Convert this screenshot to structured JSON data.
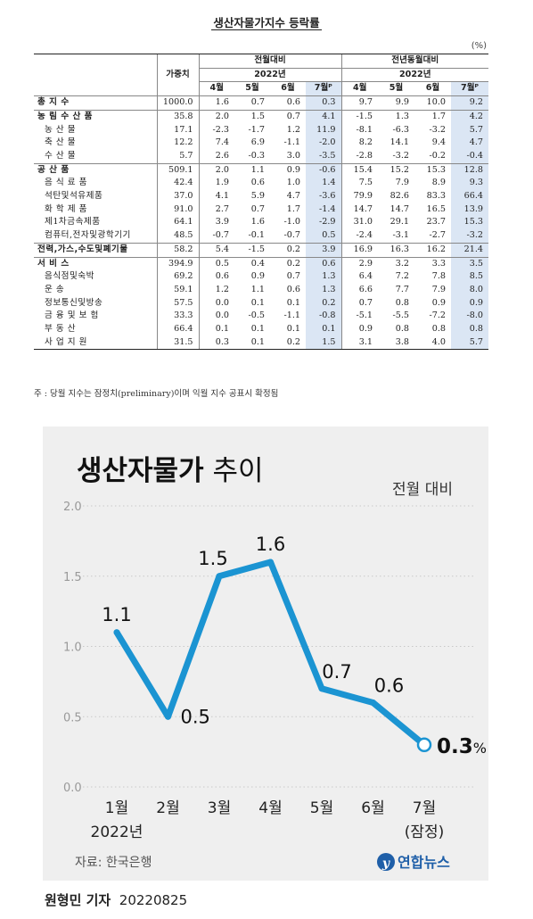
{
  "table": {
    "title": "생산자물가지수 등락률",
    "unit": "(%)",
    "headers": {
      "weight": "가중치",
      "mom": "전월대비",
      "yoy": "전년동월대비",
      "year": "2022년",
      "months": [
        "4월",
        "5월",
        "6월",
        "7월ᴾ"
      ]
    },
    "rows": [
      {
        "label": "총 지 수",
        "style": "bold",
        "w": "1000.0",
        "v": [
          "1.6",
          "0.7",
          "0.6",
          "0.3",
          "9.7",
          "9.9",
          "10.0",
          "9.2"
        ]
      },
      {
        "label": "농 림 수 산 품",
        "style": "bold",
        "w": "35.8",
        "v": [
          "2.0",
          "1.5",
          "0.7",
          "4.1",
          "-1.5",
          "1.3",
          "1.7",
          "4.2"
        ]
      },
      {
        "label": "농 산 물",
        "style": "sub",
        "w": "17.1",
        "v": [
          "-2.3",
          "-1.7",
          "1.2",
          "11.9",
          "-8.1",
          "-6.3",
          "-3.2",
          "5.7"
        ]
      },
      {
        "label": "축 산 물",
        "style": "sub",
        "w": "12.2",
        "v": [
          "7.4",
          "6.9",
          "-1.1",
          "-2.0",
          "8.2",
          "14.1",
          "9.4",
          "4.7"
        ]
      },
      {
        "label": "수 산 물",
        "style": "sub",
        "w": "5.7",
        "v": [
          "2.6",
          "-0.3",
          "3.0",
          "-3.5",
          "-2.8",
          "-3.2",
          "-0.2",
          "-0.4"
        ]
      },
      {
        "label": "공 산 품",
        "style": "bold",
        "w": "509.1",
        "v": [
          "2.0",
          "1.1",
          "0.9",
          "-0.6",
          "15.4",
          "15.2",
          "15.3",
          "12.8"
        ]
      },
      {
        "label": "음 식 료 품",
        "style": "sub",
        "w": "42.4",
        "v": [
          "1.9",
          "0.6",
          "1.0",
          "1.4",
          "7.5",
          "7.9",
          "8.9",
          "9.3"
        ]
      },
      {
        "label": "석탄및석유제품",
        "style": "sub",
        "w": "37.0",
        "v": [
          "4.1",
          "5.9",
          "4.7",
          "-3.6",
          "79.9",
          "82.6",
          "83.3",
          "66.4"
        ]
      },
      {
        "label": "화 학 제 품",
        "style": "sub",
        "w": "91.0",
        "v": [
          "2.7",
          "0.7",
          "1.7",
          "-1.4",
          "14.7",
          "14.7",
          "16.5",
          "13.9"
        ]
      },
      {
        "label": "제1차금속제품",
        "style": "sub",
        "w": "64.1",
        "v": [
          "3.9",
          "1.6",
          "-1.0",
          "-2.9",
          "31.0",
          "29.1",
          "23.7",
          "15.3"
        ]
      },
      {
        "label": "컴퓨터,전자및광학기기",
        "style": "sub",
        "w": "48.5",
        "v": [
          "-0.7",
          "-0.1",
          "-0.7",
          "0.5",
          "-2.4",
          "-3.1",
          "-2.7",
          "-3.2"
        ]
      },
      {
        "label": "전력,가스,수도및폐기물",
        "style": "bold",
        "w": "58.2",
        "v": [
          "5.4",
          "-1.5",
          "0.2",
          "3.9",
          "16.9",
          "16.3",
          "16.2",
          "21.4"
        ]
      },
      {
        "label": "서 비 스",
        "style": "bold",
        "w": "394.9",
        "v": [
          "0.5",
          "0.4",
          "0.2",
          "0.6",
          "2.9",
          "3.2",
          "3.3",
          "3.5"
        ]
      },
      {
        "label": "음식점및숙박",
        "style": "sub",
        "w": "69.2",
        "v": [
          "0.6",
          "0.9",
          "0.7",
          "1.3",
          "6.4",
          "7.2",
          "7.8",
          "8.5"
        ]
      },
      {
        "label": "운 송",
        "style": "sub",
        "w": "59.1",
        "v": [
          "1.2",
          "1.1",
          "0.6",
          "1.3",
          "6.6",
          "7.7",
          "7.9",
          "8.0"
        ]
      },
      {
        "label": "정보통신및방송",
        "style": "sub",
        "w": "57.5",
        "v": [
          "0.0",
          "0.1",
          "0.1",
          "0.2",
          "0.7",
          "0.8",
          "0.9",
          "0.9"
        ]
      },
      {
        "label": "금 융 및 보 험",
        "style": "sub",
        "w": "33.3",
        "v": [
          "0.0",
          "-0.5",
          "-1.1",
          "-0.8",
          "-5.1",
          "-5.5",
          "-7.2",
          "-8.0"
        ]
      },
      {
        "label": "부 동 산",
        "style": "sub",
        "w": "66.4",
        "v": [
          "0.1",
          "0.1",
          "0.1",
          "0.1",
          "0.9",
          "0.8",
          "0.8",
          "0.8"
        ]
      },
      {
        "label": "사 업 지 원",
        "style": "sub",
        "w": "31.5",
        "v": [
          "0.3",
          "0.1",
          "0.2",
          "1.5",
          "3.1",
          "3.8",
          "4.0",
          "5.7"
        ]
      }
    ],
    "note": "주 : 당월 지수는 잠정치(preliminary)이며 익월 지수 공표시 확정됨"
  },
  "chart": {
    "title_bold": "생산자물가",
    "title_rest": " 추이",
    "subtitle": "전월 대비",
    "source": "자료: 한국은행",
    "logo_text": "연합뉴스",
    "last_suffix": "%",
    "year_label": "2022년",
    "prelim_label": "(잠정)",
    "line_color": "#1b94d2",
    "bg_color": "#efefef"
  },
  "chart_data": {
    "type": "line",
    "categories": [
      "1월",
      "2월",
      "3월",
      "4월",
      "5월",
      "6월",
      "7월"
    ],
    "series": [
      {
        "values": [
          1.1,
          0.5,
          1.5,
          1.6,
          0.7,
          0.6,
          0.3
        ]
      }
    ],
    "title": "생산자물가 추이",
    "subtitle": "전월 대비",
    "ylim": [
      0.0,
      2.0
    ],
    "yticks": [
      "0.0",
      "0.5",
      "1.0",
      "1.5",
      "2.0"
    ],
    "data_labels": [
      "1.1",
      "0.5",
      "1.5",
      "1.6",
      "0.7",
      "0.6",
      "0.3"
    ],
    "grid": true,
    "legend": "none"
  },
  "credit": {
    "reporter": "원형민 기자",
    "date": "20220825"
  }
}
